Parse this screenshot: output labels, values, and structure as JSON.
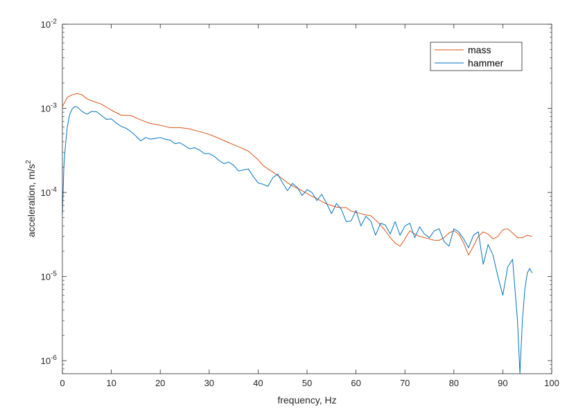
{
  "chart_data": {
    "type": "line",
    "xlabel": "frequency, Hz",
    "ylabel": "acceleration, m/s",
    "ylabel_superscript": "2",
    "xlim": [
      0,
      100
    ],
    "ylim": [
      7e-07,
      0.01
    ],
    "yscale": "log",
    "grid": false,
    "legend_position": "top-right",
    "x_ticks": [
      0,
      10,
      20,
      30,
      40,
      50,
      60,
      70,
      80,
      90,
      100
    ],
    "x_tick_labels": [
      "0",
      "10",
      "20",
      "30",
      "40",
      "50",
      "60",
      "70",
      "80",
      "90",
      "100"
    ],
    "y_ticks": [
      {
        "value": 1e-06,
        "base": "10",
        "exp": "-6"
      },
      {
        "value": 1e-05,
        "base": "10",
        "exp": "-5"
      },
      {
        "value": 0.0001,
        "base": "10",
        "exp": "-4"
      },
      {
        "value": 0.001,
        "base": "10",
        "exp": "-3"
      },
      {
        "value": 0.01,
        "base": "10",
        "exp": "-2"
      }
    ],
    "series": [
      {
        "name": "mass",
        "color": "#D95319",
        "x": [
          0,
          1,
          2,
          3,
          4,
          5,
          6,
          8,
          10,
          12,
          14,
          16,
          18,
          20,
          22,
          24,
          26,
          28,
          30,
          32,
          34,
          36,
          38,
          40,
          41,
          42,
          43,
          44,
          45,
          46,
          47,
          48,
          49,
          50,
          51,
          52,
          53,
          54,
          55,
          56,
          57,
          58,
          59,
          60,
          61,
          62,
          63,
          64,
          65,
          66,
          67,
          68,
          69,
          70,
          71,
          72,
          73,
          74,
          75,
          76,
          77,
          78,
          79,
          80,
          81,
          82,
          83,
          84,
          85,
          86,
          87,
          88,
          89,
          90,
          91,
          92,
          93,
          94,
          95,
          96
        ],
        "values": [
          0.00105,
          0.00135,
          0.00145,
          0.0015,
          0.00145,
          0.0013,
          0.00123,
          0.00112,
          0.00095,
          0.00083,
          0.00082,
          0.00073,
          0.00066,
          0.00063,
          0.00059,
          0.00059,
          0.00057,
          0.00053,
          0.00049,
          0.00044,
          0.00039,
          0.00035,
          0.00031,
          0.000245,
          0.00021,
          0.00019,
          0.000175,
          0.00016,
          0.000145,
          0.00013,
          0.00012,
          0.000112,
          0.000105,
          9.7e-05,
          9e-05,
          8.5e-05,
          7.8e-05,
          7.3e-05,
          7e-05,
          6.7e-05,
          6.6e-05,
          6.6e-05,
          6e-05,
          5.8e-05,
          5.6e-05,
          5.4e-05,
          5.3e-05,
          4.7e-05,
          4.1e-05,
          3.5e-05,
          2.9e-05,
          2.5e-05,
          2.3e-05,
          2.8e-05,
          3.5e-05,
          3.2e-05,
          3e-05,
          2.9e-05,
          2.8e-05,
          2.7e-05,
          2.7e-05,
          2.9e-05,
          3.3e-05,
          3.5e-05,
          3.2e-05,
          2.5e-05,
          1.8e-05,
          2.3e-05,
          3e-05,
          3.4e-05,
          3.2e-05,
          2.8e-05,
          3e-05,
          3.6e-05,
          3.7e-05,
          3.3e-05,
          2.9e-05,
          2.9e-05,
          3.1e-05,
          3e-05
        ]
      },
      {
        "name": "hammer",
        "color": "#0072BD",
        "x": [
          0,
          0.3,
          0.6,
          1,
          1.5,
          2,
          2.5,
          3,
          3.5,
          4,
          5,
          6,
          7,
          8,
          9,
          10,
          11,
          12,
          13,
          14,
          15,
          16,
          17,
          18,
          19,
          20,
          21,
          22,
          23,
          24,
          25,
          26,
          27,
          28,
          29,
          30,
          31,
          32,
          33,
          34,
          35,
          36,
          37,
          38,
          39,
          40,
          41,
          42,
          43,
          44,
          45,
          46,
          47,
          48,
          49,
          50,
          51,
          52,
          53,
          54,
          55,
          56,
          57,
          58,
          59,
          60,
          61,
          62,
          63,
          64,
          65,
          66,
          67,
          68,
          69,
          70,
          71,
          72,
          73,
          74,
          75,
          76,
          77,
          78,
          79,
          80,
          81,
          82,
          83,
          84,
          85,
          86,
          87,
          88,
          89,
          90,
          91,
          92,
          93,
          93.5,
          94,
          94.5,
          95,
          95.5,
          96
        ],
        "values": [
          5.5e-05,
          0.0002,
          0.00035,
          0.0006,
          0.00085,
          0.00098,
          0.00105,
          0.00104,
          0.00098,
          0.00092,
          0.00085,
          0.00092,
          0.00091,
          0.00082,
          0.00074,
          0.00075,
          0.00067,
          0.00061,
          0.00058,
          0.00053,
          0.00047,
          0.00041,
          0.00045,
          0.00043,
          0.00044,
          0.00045,
          0.00043,
          0.00042,
          0.00038,
          0.00039,
          0.00036,
          0.00033,
          0.00034,
          0.00032,
          0.00029,
          0.00029,
          0.00027,
          0.00024,
          0.00022,
          0.00023,
          0.00021,
          0.00018,
          0.000185,
          0.00019,
          0.000155,
          0.00013,
          0.000125,
          0.000118,
          0.00015,
          0.000165,
          0.00013,
          0.000105,
          0.000128,
          0.000115,
          9.2e-05,
          0.000108,
          0.0001,
          8e-05,
          9.5e-05,
          7.4e-05,
          5.6e-05,
          7.4e-05,
          6.3e-05,
          4.5e-05,
          4.6e-05,
          6.1e-05,
          4e-05,
          5.2e-05,
          4.6e-05,
          3.1e-05,
          4.3e-05,
          4.1e-05,
          3.2e-05,
          4.5e-05,
          3.1e-05,
          4e-05,
          4.3e-05,
          2.9e-05,
          3.9e-05,
          3.2e-05,
          2.9e-05,
          3.5e-05,
          3.7e-05,
          2.6e-05,
          2.3e-05,
          3.7e-05,
          3.4e-05,
          2.8e-05,
          2.2e-05,
          3.1e-05,
          3.4e-05,
          1.4e-05,
          2.4e-05,
          1.8e-05,
          1e-05,
          6e-06,
          1.3e-05,
          1.6e-05,
          3e-06,
          7e-07,
          3e-06,
          7e-06,
          1.1e-05,
          1.25e-05,
          1.1e-05
        ]
      }
    ]
  }
}
